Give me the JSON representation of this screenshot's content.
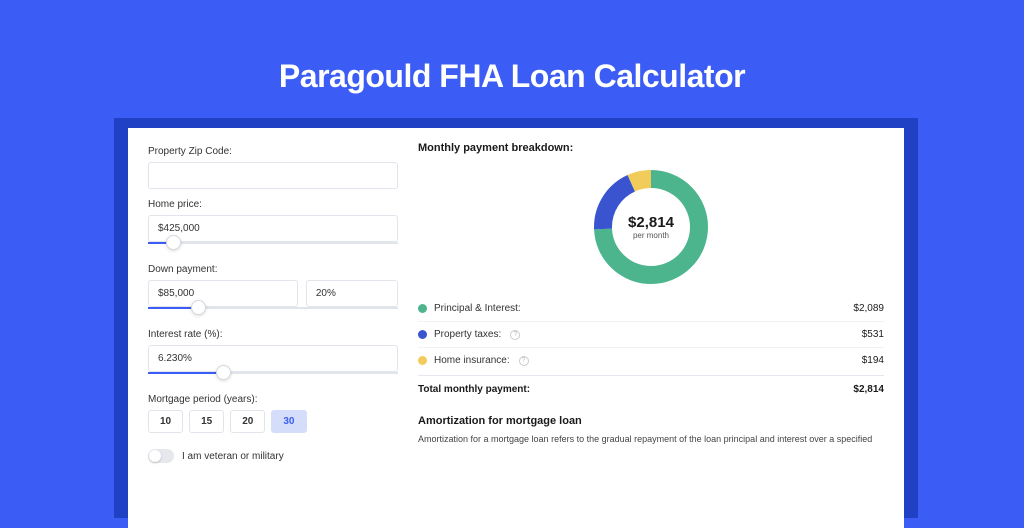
{
  "page": {
    "title": "Paragould FHA Loan Calculator"
  },
  "form": {
    "zip": {
      "label": "Property Zip Code:",
      "value": ""
    },
    "home_price": {
      "label": "Home price:",
      "value": "$425,000",
      "slider_pct": 10
    },
    "down_payment": {
      "label": "Down payment:",
      "value": "$85,000",
      "pct": "20%",
      "slider_pct": 20
    },
    "interest_rate": {
      "label": "Interest rate (%):",
      "value": "6.230%",
      "slider_pct": 30
    },
    "mortgage_period": {
      "label": "Mortgage period (years):",
      "options": [
        "10",
        "15",
        "20",
        "30"
      ],
      "selected": "30"
    },
    "veteran": {
      "label": "I am veteran or military",
      "checked": false
    }
  },
  "breakdown": {
    "title": "Monthly payment breakdown:",
    "amount": "$2,814",
    "sub": "per month",
    "chart": {
      "donut_thickness": 18,
      "segments": [
        {
          "label": "Principal & Interest:",
          "value": "$2,089",
          "color": "#4cb58e",
          "pct": 74.2
        },
        {
          "label": "Property taxes:",
          "value": "$531",
          "info": true,
          "color": "#3a54d0",
          "pct": 18.9
        },
        {
          "label": "Home insurance:",
          "value": "$194",
          "info": true,
          "color": "#f2cc5a",
          "pct": 6.9
        }
      ]
    },
    "total_label": "Total monthly payment:",
    "total_value": "$2,814"
  },
  "amortization": {
    "title": "Amortization for mortgage loan",
    "text": "Amortization for a mortgage loan refers to the gradual repayment of the loan principal and interest over a specified"
  },
  "colors": {
    "page_bg": "#3b5cf5",
    "card_shadow": "#2041c4",
    "card_bg": "#ffffff",
    "input_border": "#e1e4ea",
    "slider_fill": "#3b5cf5",
    "period_active_bg": "#d4defa"
  }
}
